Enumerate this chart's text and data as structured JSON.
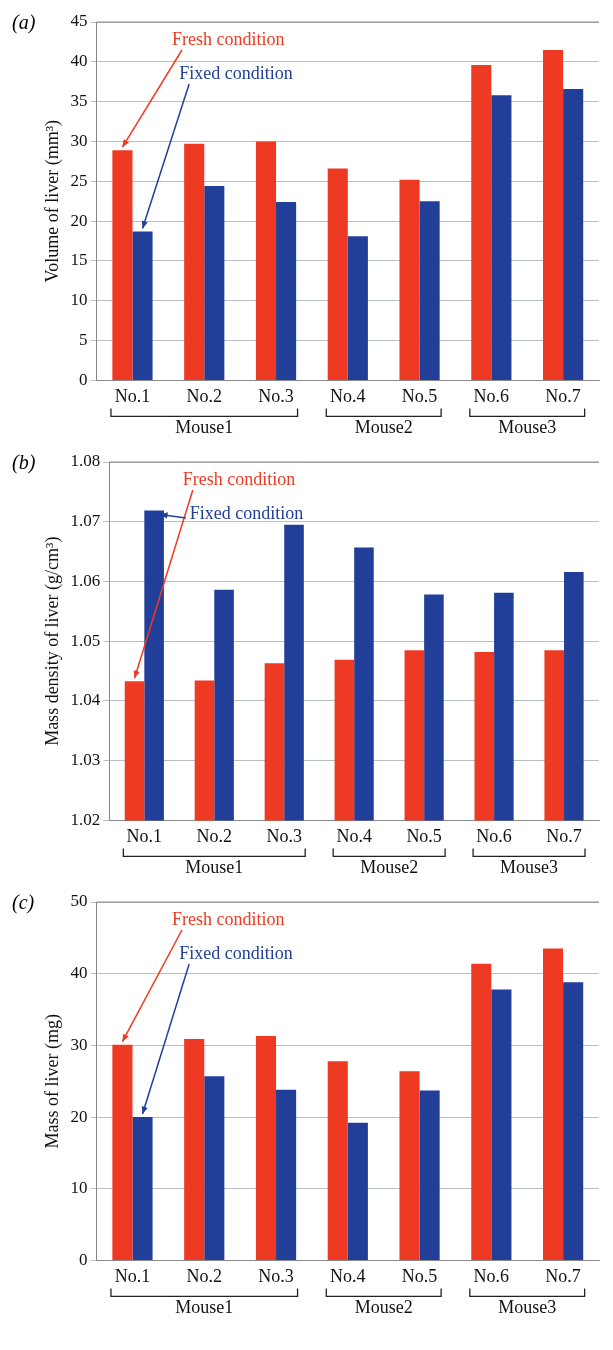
{
  "chart_data": [
    {
      "type": "bar",
      "title": "(a)",
      "ylabel": "Volume of liver (mm³)",
      "categories": [
        "No.1",
        "No.2",
        "No.3",
        "No.4",
        "No.5",
        "No.6",
        "No.7"
      ],
      "series": [
        {
          "name": "Fresh condition",
          "color": "#ee3a23",
          "values": [
            28.9,
            29.7,
            30.0,
            26.6,
            25.2,
            39.6,
            41.5
          ]
        },
        {
          "name": "Fixed condition",
          "color": "#213f99",
          "values": [
            18.7,
            24.4,
            22.4,
            18.1,
            22.5,
            35.8,
            36.6
          ]
        }
      ],
      "ylim": [
        0,
        45
      ],
      "yticks": [
        0,
        5,
        10,
        15,
        20,
        25,
        30,
        35,
        40,
        45
      ],
      "grid": "y",
      "legend": "top left",
      "annotations": [
        "Mouse1",
        "Mouse2",
        "Mouse3"
      ]
    },
    {
      "type": "bar",
      "title": "(b)",
      "ylabel": "Mass density of liver (g/cm³)",
      "categories": [
        "No.1",
        "No.2",
        "No.3",
        "No.4",
        "No.5",
        "No.6",
        "No.7"
      ],
      "series": [
        {
          "name": "Fresh condition",
          "color": "#ee3a23",
          "values": [
            1.0433,
            1.0434,
            1.0463,
            1.0469,
            1.0485,
            1.0482,
            1.0485
          ]
        },
        {
          "name": "Fixed condition",
          "color": "#213f99",
          "values": [
            1.0719,
            1.0586,
            1.0695,
            1.0657,
            1.0578,
            1.0581,
            1.0616
          ]
        }
      ],
      "ylim": [
        1.02,
        1.08
      ],
      "yticks": [
        1.02,
        1.03,
        1.04,
        1.05,
        1.06,
        1.07,
        1.08
      ],
      "grid": "y",
      "legend": "top left",
      "annotations": [
        "Mouse1",
        "Mouse2",
        "Mouse3"
      ]
    },
    {
      "type": "bar",
      "title": "(c)",
      "ylabel": "Mass of liver (mg)",
      "categories": [
        "No.1",
        "No.2",
        "No.3",
        "No.4",
        "No.5",
        "No.6",
        "No.7"
      ],
      "series": [
        {
          "name": "Fresh condition",
          "color": "#ee3a23",
          "values": [
            30.1,
            30.9,
            31.3,
            27.8,
            26.4,
            41.4,
            43.5
          ]
        },
        {
          "name": "Fixed condition",
          "color": "#213f99",
          "values": [
            20.0,
            25.7,
            23.8,
            19.2,
            23.7,
            37.8,
            38.8
          ]
        }
      ],
      "ylim": [
        0,
        50
      ],
      "yticks": [
        0,
        10,
        20,
        30,
        40,
        50
      ],
      "grid": "y",
      "legend": "top left",
      "annotations": [
        "Mouse1",
        "Mouse2",
        "Mouse3"
      ]
    }
  ]
}
